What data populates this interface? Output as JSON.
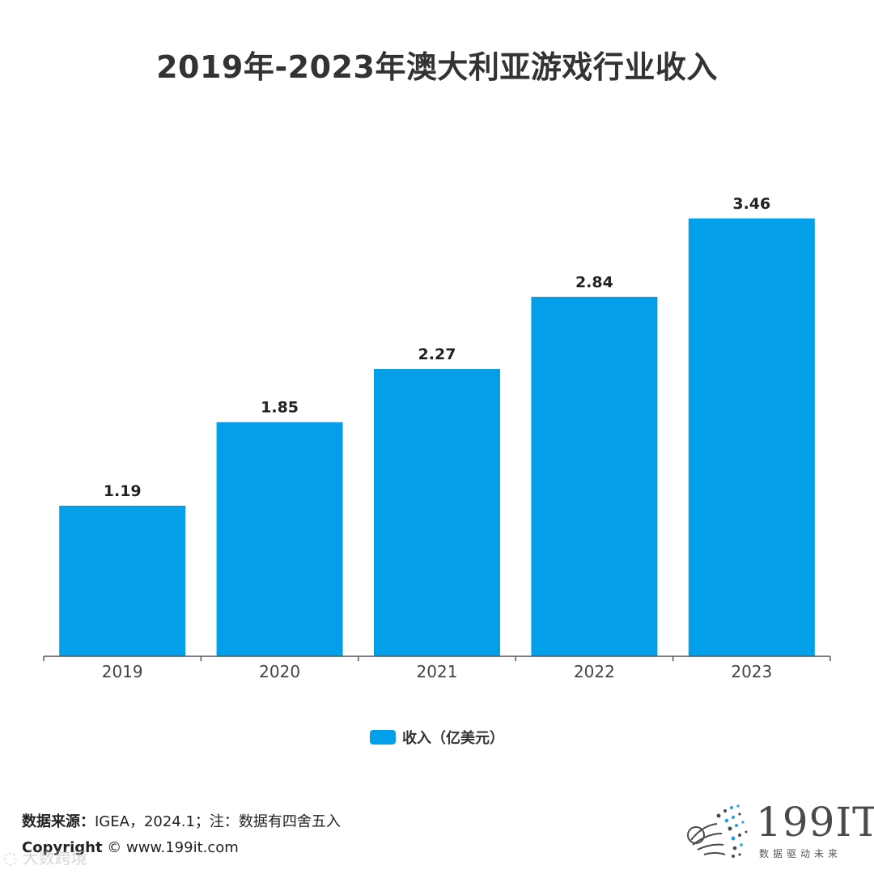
{
  "title": "2019年-2023年澳大利亚游戏行业收入",
  "colors": {
    "bar": "#039FE8",
    "axis": "#555555",
    "text": "#333333"
  },
  "chart_data": {
    "type": "bar",
    "title": "2019年-2023年澳大利亚游戏行业收入",
    "categories": [
      "2019",
      "2020",
      "2021",
      "2022",
      "2023"
    ],
    "series": [
      {
        "name": "收入（亿美元）",
        "values": [
          1.19,
          1.85,
          2.27,
          2.84,
          3.46
        ]
      }
    ],
    "data_labels": [
      "1.19",
      "1.85",
      "2.27",
      "2.84",
      "3.46"
    ],
    "ylim": [
      0,
      3.5
    ],
    "grid": false,
    "legend": "bottom-center"
  },
  "legend": {
    "label": "收入（亿美元）"
  },
  "footer": {
    "source_key": "数据来源：",
    "source_value": "IGEA，2024.1；注：数据有四舍五入",
    "copyright_key": "Copyright",
    "copyright_value": " © www.199it.com"
  },
  "watermark": "大数跨境",
  "logo": {
    "name": "199IT",
    "tagline": "数据驱动未来",
    "icon": "dot-sphere-logo-icon"
  }
}
